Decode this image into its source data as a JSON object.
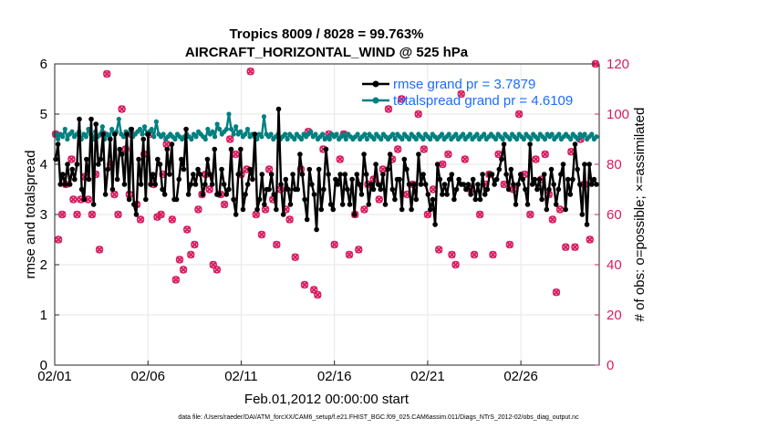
{
  "colors": {
    "rmse": "#000000",
    "spread": "#00807f",
    "obs": "#d81b60",
    "legend_text": "#1a6dff",
    "grid": "#e6e6e6",
    "axes": "#262626"
  },
  "chart_data": {
    "type": "line",
    "title_line1": "Tropics 8009 / 8028 = 99.763%",
    "title_line2": "AIRCRAFT_HORIZONTAL_WIND @ 525 hPa",
    "xlabel": "Feb.01,2012 00:00:00 start",
    "ylabel_left": "rmse and totalspread",
    "ylabel_right": "# of obs: o=possible; ×=assimilated",
    "xlim": [
      0,
      29.2
    ],
    "ylim_left": [
      0,
      6
    ],
    "ylim_right": [
      0,
      120
    ],
    "x_ticks": [
      0,
      5,
      10,
      15,
      20,
      25
    ],
    "x_tick_labels": [
      "02/01",
      "02/06",
      "02/11",
      "02/16",
      "02/21",
      "02/26"
    ],
    "y_ticks_left": [
      0,
      1,
      2,
      3,
      4,
      5,
      6
    ],
    "y_ticks_right": [
      0,
      20,
      40,
      60,
      80,
      100,
      120
    ],
    "legend": {
      "rmse_label": "rmse grand pr = 3.7879",
      "spread_label": "totalspread grand pr = 4.6109",
      "position": "top-right"
    },
    "rmse": [
      4.1,
      4.4,
      3.6,
      3.8,
      3.6,
      4.0,
      3.6,
      3.9,
      3.7,
      4.0,
      4.9,
      3.5,
      3.3,
      4.1,
      3.7,
      4.9,
      3.2,
      4.8,
      4.0,
      4.1,
      4.6,
      3.4,
      3.9,
      4.5,
      3.5,
      4.6,
      3.7,
      4.3,
      4.2,
      3.6,
      4.6,
      3.3,
      4.7,
      3.2,
      3.0,
      4.1,
      3.6,
      4.5,
      3.3,
      4.6,
      3.6,
      3.8,
      3.6,
      4.1,
      4.0,
      3.5,
      3.4,
      4.3,
      3.8,
      4.4,
      3.3,
      3.3,
      3.7,
      4.1,
      3.9,
      4.7,
      3.4,
      3.6,
      3.8,
      3.6,
      3.9,
      3.8,
      3.4,
      3.6,
      4.1,
      3.8,
      3.6,
      4.3,
      3.4,
      3.4,
      3.9,
      3.6,
      3.4,
      3.5,
      4.3,
      3.3,
      3.0,
      3.8,
      4.3,
      3.1,
      3.4,
      3.6,
      3.9,
      3.7,
      4.6,
      3.1,
      3.3,
      3.8,
      3.2,
      3.5,
      3.5,
      3.8,
      3.4,
      3.1,
      5.1,
      3.6,
      3.0,
      3.7,
      3.5,
      3.2,
      3.8,
      3.5,
      3.5,
      4.2,
      3.8,
      3.3,
      2.9,
      3.9,
      3.6,
      3.4,
      2.7,
      3.9,
      3.1,
      3.5,
      4.3,
      3.8,
      3.2,
      3.1,
      3.7,
      3.6,
      3.8,
      3.2,
      3.8,
      3.5,
      3.2,
      3.7,
      3.0,
      3.8,
      3.6,
      3.4,
      4.2,
      3.8,
      3.2,
      3.6,
      3.5,
      4.0,
      3.6,
      3.5,
      3.8,
      3.2,
      3.9,
      4.2,
      3.5,
      3.3,
      3.7,
      3.7,
      3.1,
      4.1,
      3.9,
      3.6,
      3.1,
      3.6,
      3.3,
      4.2,
      3.6,
      3.8,
      3.6,
      3.4,
      3.1,
      3.3,
      2.8,
      4.0,
      3.7,
      3.4,
      3.6,
      3.4,
      3.7,
      3.8,
      3.3,
      3.5,
      3.7,
      3.6,
      3.6,
      3.5,
      3.6,
      3.4,
      3.7,
      3.3,
      3.6,
      3.3,
      3.8,
      3.4,
      3.5,
      3.8,
      3.8,
      3.6,
      3.7,
      3.9,
      4.1,
      4.4,
      3.8,
      3.5,
      3.9,
      3.6,
      3.2,
      3.6,
      3.8,
      3.7,
      3.5,
      3.2,
      4.4,
      3.6,
      3.7,
      3.5,
      3.7,
      3.3,
      3.8,
      3.1,
      3.5,
      3.9,
      3.6,
      3.2,
      3.5,
      3.8,
      4.0,
      3.1,
      3.7,
      3.4,
      3.7,
      4.4,
      3.9,
      3.6,
      3.0,
      4.0,
      2.8,
      4.0,
      3.6,
      3.7,
      3.6
    ],
    "totalspread": [
      4.6,
      4.5,
      4.6,
      4.55,
      4.7,
      4.5,
      4.6,
      4.65,
      4.55,
      4.6,
      4.65,
      4.5,
      4.6,
      4.55,
      4.7,
      4.6,
      4.5,
      4.65,
      4.55,
      4.6,
      4.75,
      4.5,
      4.6,
      4.55,
      4.7,
      4.6,
      4.65,
      4.9,
      4.6,
      4.55,
      4.65,
      4.6,
      4.7,
      4.55,
      4.6,
      4.65,
      4.7,
      4.6,
      4.75,
      4.6,
      4.65,
      4.7,
      4.55,
      4.85,
      4.6,
      4.55,
      4.6,
      4.5,
      4.55,
      4.6,
      4.55,
      4.5,
      4.6,
      4.55,
      4.5,
      4.55,
      4.6,
      4.55,
      4.5,
      4.6,
      4.55,
      4.65,
      4.6,
      4.55,
      4.5,
      4.7,
      4.6,
      4.65,
      4.55,
      4.8,
      4.7,
      4.6,
      4.65,
      4.7,
      5.0,
      4.7,
      4.6,
      4.75,
      4.6,
      4.65,
      4.55,
      4.6,
      4.7,
      4.55,
      4.6,
      4.55,
      4.5,
      4.6,
      4.55,
      4.95,
      4.6,
      4.55,
      4.6,
      4.5,
      4.55,
      4.6,
      4.5,
      4.55,
      4.6,
      4.5,
      4.6,
      4.55,
      4.5,
      4.6,
      4.55,
      4.5,
      4.6,
      4.55,
      4.6,
      4.65,
      4.55,
      4.6,
      4.5,
      4.55,
      4.6,
      4.5,
      4.55,
      4.5,
      4.6,
      4.55,
      4.6,
      4.5,
      4.55,
      4.6,
      4.5,
      4.6,
      4.55,
      4.5,
      4.55,
      4.6,
      4.5,
      4.55,
      4.6,
      4.5,
      4.6,
      4.55,
      4.5,
      4.6,
      4.55,
      4.5,
      4.6,
      4.55,
      4.5,
      4.55,
      4.6,
      4.5,
      4.6,
      4.55,
      4.5,
      4.6,
      4.55,
      4.5,
      4.6,
      4.55,
      4.5,
      4.6,
      4.55,
      4.5,
      4.6,
      4.55,
      4.5,
      4.6,
      4.55,
      4.5,
      4.55,
      4.6,
      4.5,
      4.55,
      4.6,
      4.5,
      4.55,
      4.6,
      4.5,
      4.55,
      4.6,
      4.5,
      4.55,
      4.6,
      4.5,
      4.55,
      4.6,
      4.5,
      4.55,
      4.6,
      4.5,
      4.55,
      4.6,
      4.55,
      4.5,
      4.6,
      4.55,
      4.5,
      4.6,
      4.55,
      4.5,
      4.6,
      4.55,
      4.5,
      4.6,
      4.55,
      4.5,
      4.6,
      4.55,
      4.5,
      4.6,
      4.55,
      4.5,
      4.6,
      4.55,
      4.5,
      4.6,
      4.55,
      4.6,
      4.5,
      4.55,
      4.6,
      4.5,
      4.55,
      4.6,
      4.55,
      4.5,
      4.6,
      4.55,
      4.5,
      4.6,
      4.55,
      4.6,
      4.5,
      4.55,
      4.6,
      4.5,
      4.55
    ],
    "obs_possible": [
      [
        0.05,
        92
      ],
      [
        0.2,
        50
      ],
      [
        0.4,
        60
      ],
      [
        0.6,
        72
      ],
      [
        0.9,
        82
      ],
      [
        1.0,
        66
      ],
      [
        1.2,
        60
      ],
      [
        1.4,
        66
      ],
      [
        1.6,
        75
      ],
      [
        1.8,
        66
      ],
      [
        2.0,
        60
      ],
      [
        2.2,
        76
      ],
      [
        2.4,
        46
      ],
      [
        2.6,
        92
      ],
      [
        2.8,
        116
      ],
      [
        3.0,
        80
      ],
      [
        3.2,
        68
      ],
      [
        3.4,
        60
      ],
      [
        3.6,
        102
      ],
      [
        3.8,
        86
      ],
      [
        4.0,
        68
      ],
      [
        4.1,
        92
      ],
      [
        4.4,
        64
      ],
      [
        4.6,
        58
      ],
      [
        4.8,
        84
      ],
      [
        5.1,
        92
      ],
      [
        5.3,
        72
      ],
      [
        5.5,
        59
      ],
      [
        5.7,
        60
      ],
      [
        5.8,
        76
      ],
      [
        6.0,
        88
      ],
      [
        6.3,
        58
      ],
      [
        6.5,
        34
      ],
      [
        6.7,
        42
      ],
      [
        6.9,
        38
      ],
      [
        7.1,
        54
      ],
      [
        7.3,
        44
      ],
      [
        7.5,
        48
      ],
      [
        7.7,
        62
      ],
      [
        7.9,
        68
      ],
      [
        8.1,
        76
      ],
      [
        8.3,
        70
      ],
      [
        8.5,
        40
      ],
      [
        8.7,
        38
      ],
      [
        8.9,
        68
      ],
      [
        9.1,
        64
      ],
      [
        9.4,
        90
      ],
      [
        9.7,
        84
      ],
      [
        10.0,
        76
      ],
      [
        10.3,
        78
      ],
      [
        10.5,
        117
      ],
      [
        10.8,
        60
      ],
      [
        11.1,
        52
      ],
      [
        11.3,
        62
      ],
      [
        11.5,
        78
      ],
      [
        11.7,
        66
      ],
      [
        11.9,
        48
      ],
      [
        12.1,
        70
      ],
      [
        12.4,
        62
      ],
      [
        12.6,
        58
      ],
      [
        12.9,
        43
      ],
      [
        13.2,
        78
      ],
      [
        13.4,
        32
      ],
      [
        13.6,
        93
      ],
      [
        13.9,
        30
      ],
      [
        14.1,
        28
      ],
      [
        14.4,
        86
      ],
      [
        14.7,
        92
      ],
      [
        15.0,
        48
      ],
      [
        15.3,
        82
      ],
      [
        15.5,
        92
      ],
      [
        15.8,
        44
      ],
      [
        16.1,
        60
      ],
      [
        16.3,
        46
      ],
      [
        16.6,
        62
      ],
      [
        16.8,
        72
      ],
      [
        17.1,
        74
      ],
      [
        17.4,
        66
      ],
      [
        17.6,
        78
      ],
      [
        17.9,
        102
      ],
      [
        18.1,
        82
      ],
      [
        18.4,
        86
      ],
      [
        18.6,
        106
      ],
      [
        18.9,
        68
      ],
      [
        19.2,
        72
      ],
      [
        19.5,
        100
      ],
      [
        19.8,
        86
      ],
      [
        20.0,
        60
      ],
      [
        20.3,
        70
      ],
      [
        20.6,
        46
      ],
      [
        20.8,
        80
      ],
      [
        21.1,
        84
      ],
      [
        21.3,
        44
      ],
      [
        21.5,
        40
      ],
      [
        21.8,
        108
      ],
      [
        22.0,
        82
      ],
      [
        22.3,
        70
      ],
      [
        22.5,
        44
      ],
      [
        22.8,
        60
      ],
      [
        23.1,
        72
      ],
      [
        23.3,
        76
      ],
      [
        23.5,
        44
      ],
      [
        23.8,
        84
      ],
      [
        24.1,
        72
      ],
      [
        24.4,
        48
      ],
      [
        24.6,
        70
      ],
      [
        24.9,
        100
      ],
      [
        25.2,
        76
      ],
      [
        25.5,
        60
      ],
      [
        25.8,
        82
      ],
      [
        26.1,
        74
      ],
      [
        26.3,
        84
      ],
      [
        26.5,
        68
      ],
      [
        26.7,
        58
      ],
      [
        26.9,
        29
      ],
      [
        27.1,
        62
      ],
      [
        27.4,
        47
      ],
      [
        27.7,
        85
      ],
      [
        27.9,
        47
      ],
      [
        28.2,
        90
      ],
      [
        28.4,
        72
      ],
      [
        28.7,
        50
      ],
      [
        29.0,
        120
      ]
    ],
    "obs_assimilated": [
      [
        0.05,
        92
      ],
      [
        0.2,
        50
      ],
      [
        0.4,
        60
      ],
      [
        0.6,
        72
      ],
      [
        0.9,
        82
      ],
      [
        1.0,
        66
      ],
      [
        1.2,
        60
      ],
      [
        1.4,
        66
      ],
      [
        1.6,
        75
      ],
      [
        1.8,
        66
      ],
      [
        2.0,
        60
      ],
      [
        2.2,
        76
      ],
      [
        2.4,
        46
      ],
      [
        2.6,
        92
      ],
      [
        2.8,
        116
      ],
      [
        3.0,
        80
      ],
      [
        3.2,
        68
      ],
      [
        3.4,
        60
      ],
      [
        3.6,
        102
      ],
      [
        3.8,
        86
      ],
      [
        4.0,
        68
      ],
      [
        4.1,
        92
      ],
      [
        4.4,
        64
      ],
      [
        4.6,
        58
      ],
      [
        4.8,
        84
      ],
      [
        5.1,
        92
      ],
      [
        5.3,
        72
      ],
      [
        5.5,
        59
      ],
      [
        5.7,
        60
      ],
      [
        5.8,
        76
      ],
      [
        6.0,
        88
      ],
      [
        6.3,
        58
      ],
      [
        6.5,
        34
      ],
      [
        6.7,
        42
      ],
      [
        6.9,
        38
      ],
      [
        7.1,
        54
      ],
      [
        7.3,
        44
      ],
      [
        7.5,
        48
      ],
      [
        7.7,
        62
      ],
      [
        7.9,
        68
      ],
      [
        8.1,
        76
      ],
      [
        8.3,
        70
      ],
      [
        8.5,
        40
      ],
      [
        8.7,
        38
      ],
      [
        8.9,
        68
      ],
      [
        9.1,
        64
      ],
      [
        9.4,
        90
      ],
      [
        9.7,
        84
      ],
      [
        10.0,
        76
      ],
      [
        10.3,
        78
      ],
      [
        10.5,
        117
      ],
      [
        10.8,
        60
      ],
      [
        11.1,
        52
      ],
      [
        11.3,
        62
      ],
      [
        11.5,
        78
      ],
      [
        11.7,
        66
      ],
      [
        11.9,
        48
      ],
      [
        12.1,
        70
      ],
      [
        12.4,
        62
      ],
      [
        12.6,
        58
      ],
      [
        12.9,
        43
      ],
      [
        13.2,
        78
      ],
      [
        13.4,
        32
      ],
      [
        13.6,
        93
      ],
      [
        13.9,
        30
      ],
      [
        14.1,
        28
      ],
      [
        14.4,
        86
      ],
      [
        14.7,
        92
      ],
      [
        15.0,
        48
      ],
      [
        15.3,
        82
      ],
      [
        15.5,
        92
      ],
      [
        15.8,
        44
      ],
      [
        16.1,
        60
      ],
      [
        16.3,
        46
      ],
      [
        16.6,
        62
      ],
      [
        16.8,
        72
      ],
      [
        17.1,
        74
      ],
      [
        17.4,
        66
      ],
      [
        17.6,
        78
      ],
      [
        17.9,
        102
      ],
      [
        18.1,
        82
      ],
      [
        18.4,
        86
      ],
      [
        18.6,
        106
      ],
      [
        18.9,
        68
      ],
      [
        19.2,
        72
      ],
      [
        19.5,
        100
      ],
      [
        19.8,
        86
      ],
      [
        20.0,
        60
      ],
      [
        20.3,
        70
      ],
      [
        20.6,
        46
      ],
      [
        20.8,
        80
      ],
      [
        21.1,
        84
      ],
      [
        21.3,
        44
      ],
      [
        21.5,
        40
      ],
      [
        21.8,
        108
      ],
      [
        22.0,
        82
      ],
      [
        22.3,
        70
      ],
      [
        22.5,
        44
      ],
      [
        22.8,
        60
      ],
      [
        23.1,
        72
      ],
      [
        23.3,
        76
      ],
      [
        23.5,
        44
      ],
      [
        23.8,
        84
      ],
      [
        24.1,
        72
      ],
      [
        24.4,
        48
      ],
      [
        24.6,
        70
      ],
      [
        24.9,
        100
      ],
      [
        25.2,
        76
      ],
      [
        25.5,
        60
      ],
      [
        25.8,
        82
      ],
      [
        26.1,
        74
      ],
      [
        26.3,
        84
      ],
      [
        26.5,
        68
      ],
      [
        26.7,
        58
      ],
      [
        26.9,
        29
      ],
      [
        27.1,
        62
      ],
      [
        27.4,
        47
      ],
      [
        27.7,
        85
      ],
      [
        27.9,
        47
      ],
      [
        28.2,
        90
      ],
      [
        28.4,
        72
      ],
      [
        28.7,
        50
      ],
      [
        29.0,
        120
      ]
    ],
    "footnote": "data file: /Users/raeder/DAI/ATM_forcXX/CAM6_setup/f.e21.FHIST_BGC.f09_025.CAM6assim.011/Diags_NTrS_2012-02/obs_diag_output.nc"
  }
}
